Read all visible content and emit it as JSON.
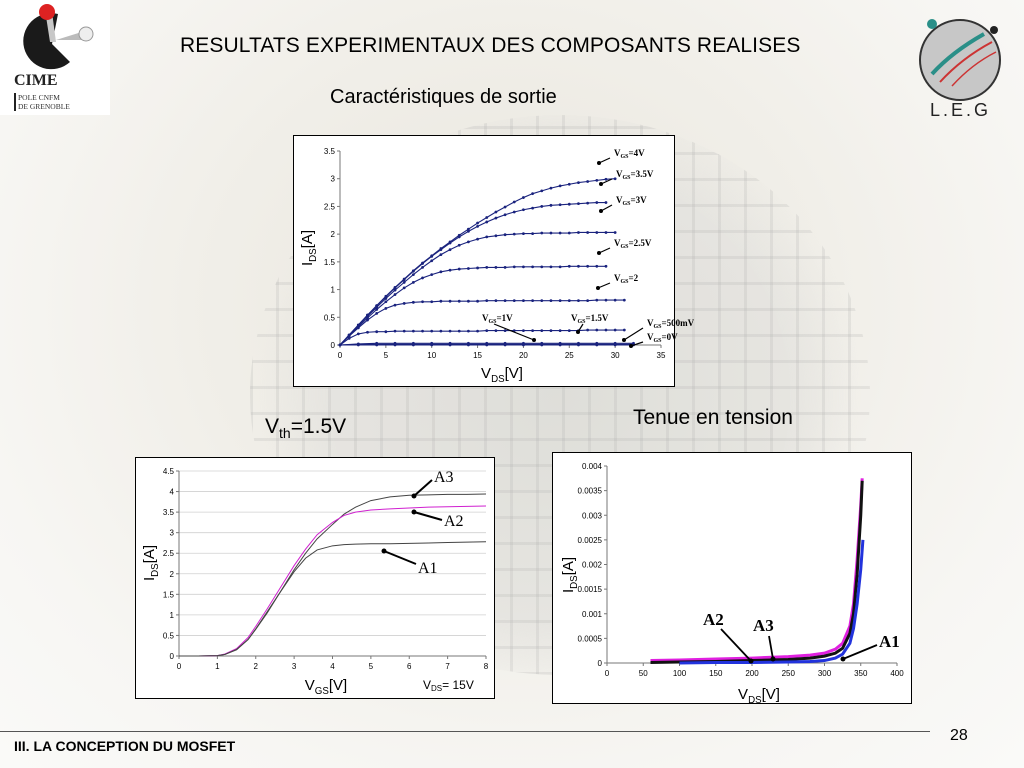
{
  "header": {
    "title": "RESULTATS EXPERIMENTAUX DES COMPOSANTS REALISES",
    "subtitle": "Caractéristiques de sortie"
  },
  "logos": {
    "cime_name": "CIME",
    "cime_line1": "POLE CNFM",
    "cime_line2": "DE GRENOBLE",
    "leg_name": "L.E.G"
  },
  "labels": {
    "vth_main": "V",
    "vth_sub": "th",
    "vth_value": "=1.5V",
    "tenue": "Tenue en tension"
  },
  "footer": {
    "section": "III. LA CONCEPTION DU MOSFET",
    "page": "28"
  },
  "chart_data": [
    {
      "type": "line",
      "xlabel": "VDS[V]",
      "ylabel": "IDS[A]",
      "xlim": [
        0,
        35
      ],
      "ylim": [
        0,
        3.5
      ],
      "xticks": [
        0,
        5,
        10,
        15,
        20,
        25,
        30,
        35
      ],
      "yticks": [
        0,
        0.5,
        1,
        1.5,
        2,
        2.5,
        3,
        3.5
      ],
      "ytick_labels": [
        "0",
        "0.5",
        "1",
        "1.5",
        "2",
        "2.5",
        "3",
        "3.5"
      ],
      "series": [
        {
          "name": "VGS=4V",
          "x": [
            0,
            1,
            2,
            3,
            4,
            5,
            6,
            7,
            8,
            9,
            10,
            11,
            12,
            13,
            14,
            15,
            16,
            17,
            18,
            19,
            20,
            21,
            22,
            23,
            24,
            25,
            26,
            27,
            28,
            29,
            30
          ],
          "values": [
            0,
            0.18,
            0.36,
            0.54,
            0.71,
            0.88,
            1.04,
            1.19,
            1.34,
            1.48,
            1.61,
            1.74,
            1.86,
            1.98,
            2.09,
            2.2,
            2.3,
            2.4,
            2.49,
            2.58,
            2.66,
            2.73,
            2.78,
            2.83,
            2.87,
            2.9,
            2.93,
            2.95,
            2.97,
            2.99,
            3.0
          ]
        },
        {
          "name": "VGS=3.5V",
          "x": [
            0,
            1,
            2,
            3,
            4,
            5,
            6,
            7,
            8,
            9,
            10,
            11,
            12,
            13,
            14,
            15,
            16,
            17,
            18,
            19,
            20,
            21,
            22,
            23,
            24,
            25,
            26,
            27,
            28,
            29
          ],
          "values": [
            0,
            0.18,
            0.36,
            0.54,
            0.71,
            0.87,
            1.03,
            1.18,
            1.33,
            1.47,
            1.6,
            1.72,
            1.84,
            1.95,
            2.05,
            2.14,
            2.22,
            2.29,
            2.35,
            2.4,
            2.44,
            2.47,
            2.5,
            2.52,
            2.53,
            2.54,
            2.55,
            2.56,
            2.57,
            2.57
          ]
        },
        {
          "name": "VGS=3V",
          "x": [
            0,
            1,
            2,
            3,
            4,
            5,
            6,
            7,
            8,
            9,
            10,
            11,
            12,
            13,
            14,
            15,
            16,
            17,
            18,
            19,
            20,
            21,
            22,
            23,
            24,
            25,
            26,
            27,
            28,
            29,
            30
          ],
          "values": [
            0,
            0.18,
            0.35,
            0.52,
            0.68,
            0.84,
            0.99,
            1.13,
            1.27,
            1.4,
            1.52,
            1.63,
            1.72,
            1.8,
            1.86,
            1.91,
            1.95,
            1.97,
            1.99,
            2.0,
            2.01,
            2.01,
            2.02,
            2.02,
            2.02,
            2.02,
            2.03,
            2.03,
            2.03,
            2.03,
            2.03
          ]
        },
        {
          "name": "VGS=2.5V",
          "x": [
            0,
            1,
            2,
            3,
            4,
            5,
            6,
            7,
            8,
            9,
            10,
            11,
            12,
            13,
            14,
            15,
            16,
            17,
            18,
            19,
            20,
            21,
            22,
            23,
            24,
            25,
            26,
            27,
            28,
            29
          ],
          "values": [
            0,
            0.17,
            0.33,
            0.49,
            0.64,
            0.78,
            0.91,
            1.03,
            1.13,
            1.21,
            1.27,
            1.32,
            1.35,
            1.37,
            1.38,
            1.39,
            1.4,
            1.4,
            1.4,
            1.41,
            1.41,
            1.41,
            1.41,
            1.41,
            1.41,
            1.42,
            1.42,
            1.42,
            1.42,
            1.42
          ]
        },
        {
          "name": "VGS=2",
          "x": [
            0,
            1,
            2,
            3,
            4,
            5,
            6,
            7,
            8,
            9,
            10,
            11,
            12,
            13,
            14,
            15,
            16,
            17,
            18,
            19,
            20,
            21,
            22,
            23,
            24,
            25,
            26,
            27,
            28,
            29,
            30,
            31
          ],
          "values": [
            0,
            0.16,
            0.31,
            0.45,
            0.57,
            0.66,
            0.72,
            0.75,
            0.77,
            0.78,
            0.78,
            0.79,
            0.79,
            0.79,
            0.79,
            0.79,
            0.8,
            0.8,
            0.8,
            0.8,
            0.8,
            0.8,
            0.8,
            0.8,
            0.8,
            0.8,
            0.8,
            0.8,
            0.81,
            0.81,
            0.81,
            0.81
          ]
        },
        {
          "name": "VGS=1.5V",
          "x": [
            0,
            1,
            2,
            3,
            4,
            5,
            6,
            7,
            8,
            9,
            10,
            11,
            12,
            13,
            14,
            15,
            16,
            17,
            18,
            19,
            20,
            21,
            22,
            23,
            24,
            25,
            26,
            27,
            28,
            29,
            30,
            31
          ],
          "values": [
            0,
            0.12,
            0.2,
            0.23,
            0.24,
            0.24,
            0.25,
            0.25,
            0.25,
            0.25,
            0.25,
            0.25,
            0.25,
            0.25,
            0.25,
            0.25,
            0.26,
            0.26,
            0.26,
            0.26,
            0.26,
            0.26,
            0.26,
            0.26,
            0.26,
            0.26,
            0.26,
            0.27,
            0.27,
            0.27,
            0.27,
            0.27
          ]
        },
        {
          "name": "VGS=1V",
          "x": [
            0,
            2,
            4,
            6,
            8,
            10,
            12,
            14,
            16,
            18,
            20,
            22,
            24,
            26,
            28,
            30,
            32
          ],
          "values": [
            0,
            0.02,
            0.03,
            0.03,
            0.03,
            0.03,
            0.03,
            0.03,
            0.03,
            0.03,
            0.03,
            0.03,
            0.03,
            0.03,
            0.03,
            0.03,
            0.03
          ]
        },
        {
          "name": "VGS=500mV",
          "x": [
            0,
            2,
            4,
            6,
            8,
            10,
            12,
            14,
            16,
            18,
            20,
            22,
            24,
            26,
            28,
            30,
            32
          ],
          "values": [
            0,
            0.01,
            0.01,
            0.01,
            0.01,
            0.01,
            0.01,
            0.01,
            0.01,
            0.01,
            0.01,
            0.01,
            0.01,
            0.01,
            0.01,
            0.01,
            0.01
          ]
        },
        {
          "name": "VGS=0V",
          "x": [
            0,
            2,
            4,
            6,
            8,
            10,
            12,
            14,
            16,
            18,
            20,
            22,
            24,
            26,
            28,
            30,
            32
          ],
          "values": [
            0,
            0,
            0,
            0,
            0,
            0,
            0,
            0,
            0,
            0,
            0,
            0,
            0,
            0,
            0,
            0,
            0
          ]
        }
      ]
    },
    {
      "type": "line",
      "xlabel": "VGS[V]",
      "ylabel": "IDS[A]",
      "annotation": "VDS= 15V",
      "xlim": [
        0,
        8
      ],
      "ylim": [
        0,
        4.5
      ],
      "xticks": [
        0,
        1,
        2,
        3,
        4,
        5,
        6,
        7,
        8
      ],
      "yticks": [
        0,
        0.5,
        1,
        1.5,
        2,
        2.5,
        3,
        3.5,
        4,
        4.5
      ],
      "ytick_labels": [
        "0",
        "0.5",
        "1",
        "1.5",
        "2",
        "2.5",
        "3",
        "3.5",
        "4",
        "4.5"
      ],
      "series": [
        {
          "name": "A3",
          "x": [
            0,
            0.5,
            1,
            1.2,
            1.5,
            1.8,
            2,
            2.3,
            2.6,
            3,
            3.3,
            3.6,
            4,
            4.3,
            4.6,
            5,
            5.5,
            6,
            6.5,
            7,
            7.5,
            8
          ],
          "values": [
            0,
            0,
            0.01,
            0.04,
            0.15,
            0.4,
            0.65,
            1.05,
            1.5,
            2.1,
            2.5,
            2.85,
            3.2,
            3.45,
            3.62,
            3.78,
            3.87,
            3.91,
            3.92,
            3.93,
            3.93,
            3.94
          ]
        },
        {
          "name": "A2",
          "x": [
            0,
            0.5,
            1,
            1.2,
            1.5,
            1.8,
            2,
            2.3,
            2.6,
            3,
            3.3,
            3.6,
            4,
            4.3,
            4.6,
            5,
            5.5,
            6,
            6.5,
            7,
            7.5,
            8
          ],
          "values": [
            0,
            0,
            0.01,
            0.05,
            0.18,
            0.45,
            0.72,
            1.15,
            1.6,
            2.2,
            2.6,
            2.95,
            3.25,
            3.42,
            3.5,
            3.55,
            3.58,
            3.6,
            3.62,
            3.63,
            3.64,
            3.65
          ]
        },
        {
          "name": "A1",
          "x": [
            0,
            0.5,
            1,
            1.2,
            1.5,
            1.8,
            2,
            2.3,
            2.6,
            3,
            3.3,
            3.6,
            4,
            4.3,
            4.6,
            5,
            5.5,
            6,
            6.5,
            7,
            7.5,
            8
          ],
          "values": [
            0,
            0,
            0.01,
            0.04,
            0.16,
            0.4,
            0.66,
            1.08,
            1.5,
            2.05,
            2.38,
            2.58,
            2.68,
            2.71,
            2.72,
            2.73,
            2.73,
            2.74,
            2.75,
            2.76,
            2.77,
            2.78
          ]
        }
      ]
    },
    {
      "type": "line",
      "xlabel": "VDS[V]",
      "ylabel": "IDS[A]",
      "xlim": [
        0,
        400
      ],
      "ylim": [
        0,
        0.004
      ],
      "xticks": [
        0,
        50,
        100,
        150,
        200,
        250,
        300,
        350,
        400
      ],
      "yticks": [
        0,
        0.0005,
        0.001,
        0.0015,
        0.002,
        0.0025,
        0.003,
        0.0035,
        0.004
      ],
      "ytick_labels": [
        "0",
        "0.0005",
        "0.001",
        "0.0015",
        "0.002",
        "0.0025",
        "0.003",
        "0.0035",
        "0.004"
      ],
      "series": [
        {
          "name": "A2",
          "x": [
            60,
            100,
            150,
            200,
            250,
            280,
            300,
            315,
            325,
            335,
            340,
            345,
            350,
            352
          ],
          "values": [
            5e-05,
            6e-05,
            8e-05,
            0.0001,
            0.00013,
            0.00016,
            0.0002,
            0.00028,
            0.0004,
            0.00075,
            0.0012,
            0.0021,
            0.0032,
            0.00375
          ]
        },
        {
          "name": "A3",
          "x": [
            60,
            100,
            150,
            200,
            250,
            280,
            300,
            315,
            325,
            335,
            340,
            345,
            350,
            352
          ],
          "values": [
            1e-05,
            2e-05,
            3e-05,
            5e-05,
            7e-05,
            0.0001,
            0.00014,
            0.0002,
            0.0003,
            0.0006,
            0.001,
            0.0018,
            0.003,
            0.0037
          ]
        },
        {
          "name": "A1",
          "x": [
            100,
            150,
            200,
            250,
            280,
            300,
            315,
            325,
            335,
            340,
            345,
            350,
            353
          ],
          "values": [
            0,
            1e-05,
            1e-05,
            2e-05,
            3e-05,
            5e-05,
            0.0001,
            0.00018,
            0.0004,
            0.0007,
            0.0012,
            0.0019,
            0.0025
          ]
        }
      ]
    }
  ]
}
